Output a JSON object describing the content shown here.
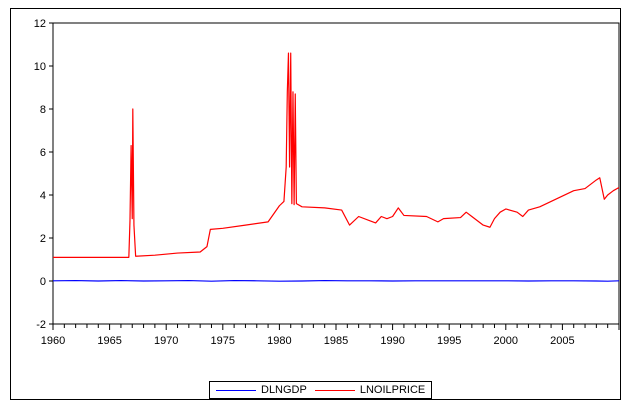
{
  "chart_data": {
    "type": "line",
    "title": "",
    "xlabel": "",
    "ylabel": "",
    "xlim": [
      1960,
      2010
    ],
    "ylim": [
      -2,
      12
    ],
    "x_ticks": [
      1960,
      1965,
      1970,
      1975,
      1980,
      1985,
      1990,
      1995,
      2000,
      2005
    ],
    "x_tick_labels": [
      "1960",
      "1965",
      "1970",
      "1975",
      "1980",
      "1985",
      "1990",
      "1995",
      "2000",
      "2005"
    ],
    "y_ticks": [
      -2,
      0,
      2,
      4,
      6,
      8,
      10,
      12
    ],
    "y_tick_labels": [
      "-2",
      "0",
      "2",
      "4",
      "6",
      "8",
      "10",
      "12"
    ],
    "grid": false,
    "legend_position": "bottom-center",
    "series": [
      {
        "name": "DLNGDP",
        "color": "#0000ff",
        "points": [
          [
            1960,
            0.01
          ],
          [
            1962,
            0.02
          ],
          [
            1964,
            0.0
          ],
          [
            1966,
            0.02
          ],
          [
            1968,
            0.0
          ],
          [
            1970,
            0.01
          ],
          [
            1972,
            0.02
          ],
          [
            1974,
            -0.01
          ],
          [
            1976,
            0.02
          ],
          [
            1978,
            0.01
          ],
          [
            1980,
            -0.01
          ],
          [
            1982,
            0.0
          ],
          [
            1984,
            0.02
          ],
          [
            1986,
            0.01
          ],
          [
            1988,
            0.01
          ],
          [
            1990,
            0.0
          ],
          [
            1992,
            0.01
          ],
          [
            1994,
            0.01
          ],
          [
            1996,
            0.01
          ],
          [
            1998,
            0.01
          ],
          [
            2000,
            0.01
          ],
          [
            2002,
            0.0
          ],
          [
            2004,
            0.01
          ],
          [
            2006,
            0.01
          ],
          [
            2008,
            0.0
          ],
          [
            2009,
            -0.01
          ],
          [
            2010,
            0.01
          ]
        ]
      },
      {
        "name": "LNOILPRICE",
        "color": "#ff0000",
        "points": [
          [
            1960,
            1.1
          ],
          [
            1966.7,
            1.1
          ],
          [
            1966.8,
            2.8
          ],
          [
            1966.9,
            6.3
          ],
          [
            1967.0,
            2.9
          ],
          [
            1967.05,
            8.0
          ],
          [
            1967.15,
            2.6
          ],
          [
            1967.3,
            1.15
          ],
          [
            1969,
            1.2
          ],
          [
            1971,
            1.3
          ],
          [
            1973,
            1.35
          ],
          [
            1973.6,
            1.6
          ],
          [
            1973.9,
            2.4
          ],
          [
            1975,
            2.45
          ],
          [
            1977,
            2.6
          ],
          [
            1979,
            2.75
          ],
          [
            1980,
            3.5
          ],
          [
            1980.4,
            3.7
          ],
          [
            1980.6,
            5.3
          ],
          [
            1980.7,
            8.8
          ],
          [
            1980.8,
            10.6
          ],
          [
            1980.9,
            5.3
          ],
          [
            1981.0,
            10.6
          ],
          [
            1981.1,
            3.6
          ],
          [
            1981.2,
            8.8
          ],
          [
            1981.3,
            3.55
          ],
          [
            1981.4,
            8.7
          ],
          [
            1981.5,
            3.6
          ],
          [
            1982,
            3.45
          ],
          [
            1984,
            3.4
          ],
          [
            1985.5,
            3.3
          ],
          [
            1986.2,
            2.6
          ],
          [
            1987,
            3.0
          ],
          [
            1988,
            2.8
          ],
          [
            1988.5,
            2.7
          ],
          [
            1989,
            3.0
          ],
          [
            1989.5,
            2.9
          ],
          [
            1990,
            3.0
          ],
          [
            1990.5,
            3.4
          ],
          [
            1991,
            3.05
          ],
          [
            1993,
            3.0
          ],
          [
            1994,
            2.75
          ],
          [
            1994.5,
            2.9
          ],
          [
            1996,
            2.95
          ],
          [
            1996.5,
            3.2
          ],
          [
            1997,
            3.0
          ],
          [
            1998,
            2.6
          ],
          [
            1998.6,
            2.5
          ],
          [
            1999,
            2.9
          ],
          [
            1999.5,
            3.2
          ],
          [
            2000,
            3.35
          ],
          [
            2001,
            3.2
          ],
          [
            2001.5,
            3.0
          ],
          [
            2002,
            3.3
          ],
          [
            2003,
            3.45
          ],
          [
            2004,
            3.7
          ],
          [
            2005,
            3.95
          ],
          [
            2006,
            4.2
          ],
          [
            2007,
            4.3
          ],
          [
            2008,
            4.7
          ],
          [
            2008.3,
            4.8
          ],
          [
            2008.7,
            3.8
          ],
          [
            2009,
            4.0
          ],
          [
            2009.5,
            4.2
          ],
          [
            2010,
            4.35
          ]
        ]
      }
    ]
  }
}
